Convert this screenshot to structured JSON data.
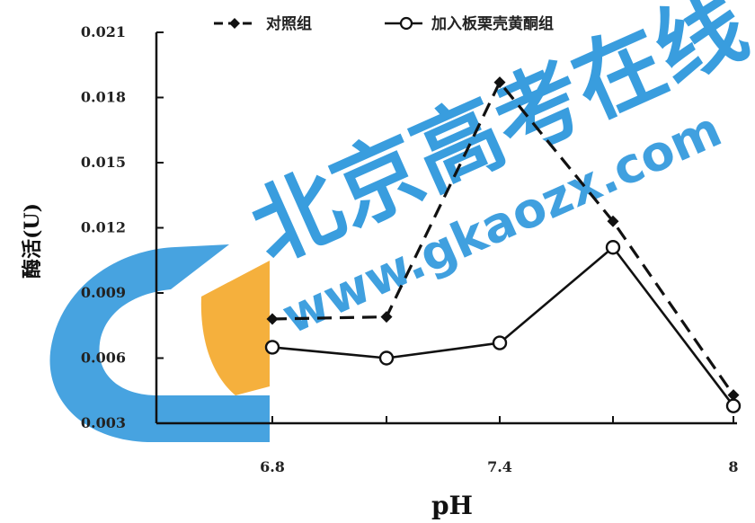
{
  "chart_data": {
    "type": "line",
    "title": "",
    "xlabel": "pH",
    "ylabel": "酶活(U)",
    "x": [
      "6.8",
      "7.1",
      "7.4",
      "7.7",
      "8"
    ],
    "x_tick_labels": [
      "6.8",
      "",
      "7.4",
      "",
      "8"
    ],
    "y_ticks": [
      "0.003",
      "0.006",
      "0.009",
      "0.012",
      "0.015",
      "0.018",
      "0.021"
    ],
    "ylim": [
      0.003,
      0.021
    ],
    "grid": false,
    "legend_position": "top",
    "series": [
      {
        "name": "对照组",
        "style": "dashed",
        "marker": "filled-diamond",
        "color": "#111111",
        "values": [
          0.0078,
          0.0079,
          0.0187,
          0.0123,
          0.0043
        ]
      },
      {
        "name": "加入板栗壳黄酮组",
        "style": "solid",
        "marker": "open-circle",
        "color": "#111111",
        "values": [
          0.0065,
          0.006,
          0.0067,
          0.0111,
          0.0038
        ]
      }
    ]
  },
  "watermark": {
    "brand": "北京高考在线",
    "url": "www.gkaozx.com",
    "colors": {
      "blue": "#1E8FD9",
      "orange": "#F3A21B"
    }
  }
}
